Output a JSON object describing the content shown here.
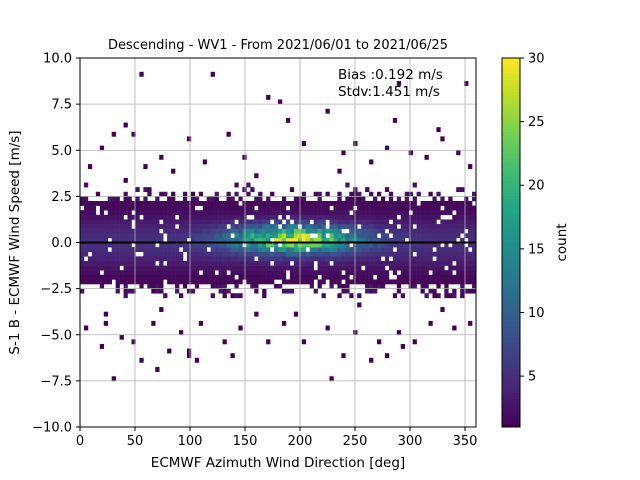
{
  "chart_data": {
    "type": "heatmap",
    "title": "Descending - WV1 - From 2021/06/01 to 2021/06/25",
    "xlabel": "ECMWF Azimuth Wind Direction [deg]",
    "ylabel": "S-1 B - ECMWF Wind Speed [m/s]",
    "xlim": [
      0,
      360
    ],
    "ylim": [
      -10,
      10
    ],
    "x_ticks": [
      "0",
      "50",
      "100",
      "150",
      "200",
      "250",
      "300",
      "350"
    ],
    "x_tick_values": [
      0,
      50,
      100,
      150,
      200,
      250,
      300,
      350
    ],
    "y_ticks": [
      "−10.0",
      "−7.5",
      "−5.0",
      "−2.5",
      "0.0",
      "2.5",
      "5.0",
      "7.5",
      "10.0"
    ],
    "y_tick_values": [
      -10,
      -7.5,
      -5,
      -2.5,
      0,
      2.5,
      5,
      7.5,
      10
    ],
    "grid": true,
    "bin_width_deg": 3.6,
    "bin_height_ms": 0.25,
    "colorbar": {
      "label": "count",
      "min": 1,
      "max": 30,
      "ticks": [
        "5",
        "10",
        "15",
        "20",
        "25",
        "30"
      ],
      "tick_values": [
        5,
        10,
        15,
        20,
        25,
        30
      ],
      "colormap": "viridis"
    },
    "annotations": {
      "bias": "Bias :0.192 m/s",
      "stdv": "Stdv:1.451 m/s"
    },
    "reference_line": {
      "y": 0,
      "color": "#000000"
    },
    "density_model": {
      "core_y_range": [
        -2.2,
        2.2
      ],
      "peak_count": 30,
      "peak_x": 195,
      "peak_y": 0.2
    },
    "outlier_points": [
      [
        55,
        9.0
      ],
      [
        120,
        9.0
      ],
      [
        290,
        8.7
      ],
      [
        350,
        8.5
      ],
      [
        170,
        7.9
      ],
      [
        180,
        7.6
      ],
      [
        225,
        7.0
      ],
      [
        40,
        6.3
      ],
      [
        190,
        6.5
      ],
      [
        285,
        6.5
      ],
      [
        30,
        5.9
      ],
      [
        50,
        5.8
      ],
      [
        135,
        5.8
      ],
      [
        325,
        6.1
      ],
      [
        100,
        5.6
      ],
      [
        205,
        5.4
      ],
      [
        250,
        5.3
      ],
      [
        330,
        5.5
      ],
      [
        20,
        5.0
      ],
      [
        72,
        4.7
      ],
      [
        240,
        4.9
      ],
      [
        300,
        4.8
      ],
      [
        345,
        4.9
      ],
      [
        280,
        5.0
      ],
      [
        10,
        4.0
      ],
      [
        60,
        4.2
      ],
      [
        115,
        4.4
      ],
      [
        150,
        4.6
      ],
      [
        265,
        4.3
      ],
      [
        315,
        4.5
      ],
      [
        355,
        4.1
      ],
      [
        85,
        3.9
      ],
      [
        235,
        3.8
      ],
      [
        160,
        3.6
      ],
      [
        40,
        3.3
      ],
      [
        5,
        -4.6
      ],
      [
        25,
        -4.4
      ],
      [
        38,
        -5.1
      ],
      [
        65,
        -4.3
      ],
      [
        90,
        -4.8
      ],
      [
        110,
        -4.5
      ],
      [
        130,
        -5.5
      ],
      [
        145,
        -4.7
      ],
      [
        170,
        -5.3
      ],
      [
        185,
        -4.5
      ],
      [
        205,
        -5.5
      ],
      [
        225,
        -4.7
      ],
      [
        250,
        -5.0
      ],
      [
        270,
        -5.4
      ],
      [
        290,
        -4.8
      ],
      [
        305,
        -5.3
      ],
      [
        320,
        -4.5
      ],
      [
        340,
        -4.7
      ],
      [
        355,
        -4.4
      ],
      [
        20,
        -5.7
      ],
      [
        50,
        -5.3
      ],
      [
        100,
        -5.9
      ],
      [
        240,
        -6.2
      ],
      [
        295,
        -5.6
      ],
      [
        30,
        -7.4
      ],
      [
        55,
        -6.5
      ],
      [
        70,
        -6.8
      ],
      [
        80,
        -6.0
      ],
      [
        98,
        -6.1
      ],
      [
        106,
        -6.4
      ],
      [
        140,
        -6.1
      ],
      [
        230,
        -7.4
      ],
      [
        265,
        -6.4
      ],
      [
        280,
        -6.2
      ],
      [
        25,
        -3.9
      ],
      [
        195,
        -3.8
      ],
      [
        330,
        -3.7
      ],
      [
        160,
        -3.9
      ],
      [
        75,
        -3.6
      ],
      [
        255,
        -3.5
      ]
    ]
  }
}
